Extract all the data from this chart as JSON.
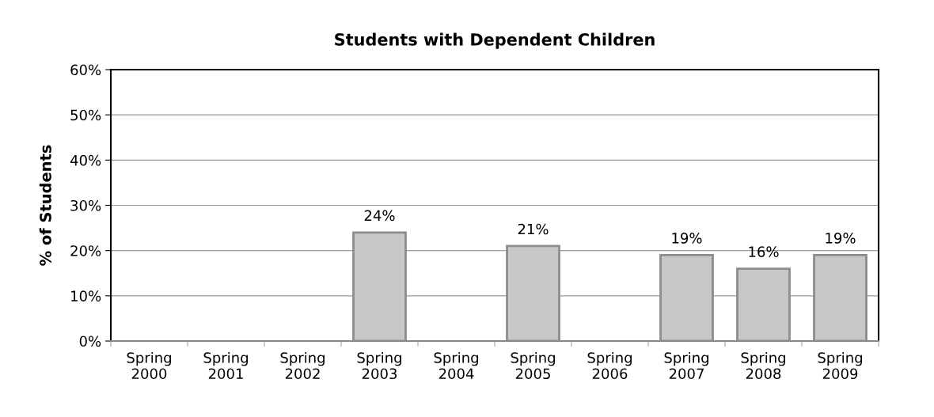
{
  "chart_data": {
    "type": "bar",
    "title": "Students with Dependent Children",
    "ylabel": "% of Students",
    "categories": [
      "Spring\n2000",
      "Spring\n2001",
      "Spring\n2002",
      "Spring\n2003",
      "Spring\n2004",
      "Spring\n2005",
      "Spring\n2006",
      "Spring\n2007",
      "Spring\n2008",
      "Spring\n2009"
    ],
    "values": [
      null,
      null,
      null,
      24,
      null,
      21,
      null,
      19,
      16,
      19
    ],
    "value_labels": [
      null,
      null,
      null,
      "24%",
      null,
      "21%",
      null,
      "19%",
      "16%",
      "19%"
    ],
    "color": "#c8c8c8",
    "ylim": [
      0,
      60
    ],
    "yticks": [
      {
        "value": 0,
        "label": "0%"
      },
      {
        "value": 10,
        "label": "10%"
      },
      {
        "value": 20,
        "label": "20%"
      },
      {
        "value": 30,
        "label": "30%"
      },
      {
        "value": 40,
        "label": "40%"
      },
      {
        "value": 50,
        "label": "50%"
      },
      {
        "value": 60,
        "label": "60%"
      }
    ],
    "grid": "y",
    "legend": false
  }
}
